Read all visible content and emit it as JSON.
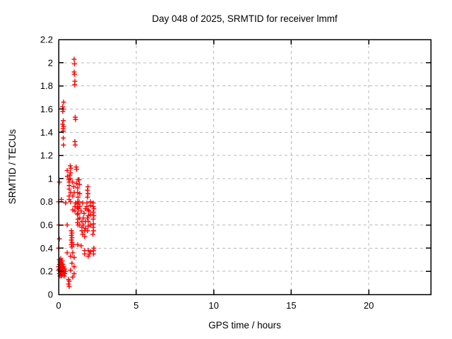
{
  "chart_data": {
    "type": "scatter",
    "title": "Day 048 of 2025, SRMTID for receiver lmmf",
    "xlabel": "GPS time / hours",
    "ylabel": "SRMTID / TECUs",
    "xlim": [
      0,
      24
    ],
    "ylim": [
      0,
      2.2
    ],
    "xticks": {
      "values": [
        0,
        5,
        10,
        15,
        20
      ],
      "labels": [
        "0",
        "5",
        "10",
        "15",
        "20"
      ]
    },
    "yticks": {
      "values": [
        0,
        0.2,
        0.4,
        0.6,
        0.8,
        1.0,
        1.2,
        1.4,
        1.6,
        1.8,
        2.0,
        2.2
      ],
      "labels": [
        "0",
        "0.2",
        "0.4",
        "0.6",
        "0.8",
        "1",
        "1.2",
        "1.4",
        "1.6",
        "1.8",
        "2",
        "2.2"
      ]
    },
    "grid": true,
    "legend": false,
    "marker": {
      "shape": "plus",
      "color": "#ff0000",
      "size": 7
    },
    "grid_color": "#b8b8b8",
    "axis_color": "#000000",
    "series": [
      {
        "name": "SRMTID",
        "points": [
          [
            1.0,
            2.03
          ],
          [
            1.02,
            1.99
          ],
          [
            1.0,
            1.92
          ],
          [
            1.02,
            1.9
          ],
          [
            1.05,
            1.84
          ],
          [
            1.03,
            1.81
          ],
          [
            0.32,
            1.66
          ],
          [
            0.26,
            1.62
          ],
          [
            0.3,
            1.6
          ],
          [
            0.27,
            1.58
          ],
          [
            0.3,
            1.5
          ],
          [
            0.26,
            1.47
          ],
          [
            0.31,
            1.45
          ],
          [
            0.28,
            1.43
          ],
          [
            0.3,
            1.41
          ],
          [
            0.3,
            1.35
          ],
          [
            0.31,
            1.29
          ],
          [
            1.07,
            1.53
          ],
          [
            1.09,
            1.51
          ],
          [
            1.05,
            1.32
          ],
          [
            1.07,
            1.29
          ],
          [
            0.75,
            1.11
          ],
          [
            0.79,
            1.09
          ],
          [
            1.13,
            1.1
          ],
          [
            0.55,
            1.07
          ],
          [
            0.76,
            1.05
          ],
          [
            0.73,
            1.03
          ],
          [
            0.57,
            1.02
          ],
          [
            0.75,
            1.0
          ],
          [
            0.66,
            0.99
          ],
          [
            1.16,
            1.08
          ],
          [
            0.05,
            0.97
          ],
          [
            0.68,
            0.97
          ],
          [
            0.89,
            0.97
          ],
          [
            1.14,
            0.96
          ],
          [
            1.32,
            0.99
          ],
          [
            1.34,
            0.95
          ],
          [
            1.25,
            0.99
          ],
          [
            0.68,
            0.94
          ],
          [
            0.98,
            0.93
          ],
          [
            1.23,
            0.92
          ],
          [
            0.68,
            0.91
          ],
          [
            1.89,
            0.93
          ],
          [
            0.77,
            0.88
          ],
          [
            1.0,
            0.88
          ],
          [
            1.23,
            0.88
          ],
          [
            1.36,
            0.87
          ],
          [
            0.68,
            0.85
          ],
          [
            0.91,
            0.85
          ],
          [
            1.25,
            0.84
          ],
          [
            1.86,
            0.9
          ],
          [
            1.89,
            0.87
          ],
          [
            1.86,
            0.84
          ],
          [
            0.18,
            0.82
          ],
          [
            0.68,
            0.82
          ],
          [
            1.22,
            0.8
          ],
          [
            0.45,
            0.79
          ],
          [
            0.77,
            0.8
          ],
          [
            1.09,
            0.79
          ],
          [
            1.32,
            0.8
          ],
          [
            1.55,
            0.79
          ],
          [
            1.82,
            0.79
          ],
          [
            2.05,
            0.8
          ],
          [
            2.23,
            0.79
          ],
          [
            0.0,
            0.8
          ],
          [
            1.25,
            0.78
          ],
          [
            1.05,
            0.76
          ],
          [
            1.36,
            0.76
          ],
          [
            1.82,
            0.76
          ],
          [
            2.05,
            0.77
          ],
          [
            2.23,
            0.76
          ],
          [
            1.22,
            0.75
          ],
          [
            0.91,
            0.73
          ],
          [
            1.27,
            0.74
          ],
          [
            1.73,
            0.74
          ],
          [
            2.27,
            0.74
          ],
          [
            1.91,
            0.73
          ],
          [
            1.05,
            0.72
          ],
          [
            1.45,
            0.72
          ],
          [
            1.95,
            0.72
          ],
          [
            2.23,
            0.71
          ],
          [
            1.25,
            0.7
          ],
          [
            1.64,
            0.7
          ],
          [
            2.05,
            0.69
          ],
          [
            1.22,
            0.69
          ],
          [
            1.91,
            0.68
          ],
          [
            2.27,
            0.68
          ],
          [
            1.36,
            0.66
          ],
          [
            1.59,
            0.66
          ],
          [
            1.86,
            0.66
          ],
          [
            1.25,
            0.65
          ],
          [
            2.23,
            0.65
          ],
          [
            1.5,
            0.63
          ],
          [
            1.73,
            0.63
          ],
          [
            1.91,
            0.63
          ],
          [
            1.22,
            0.62
          ],
          [
            0.55,
            0.6
          ],
          [
            1.36,
            0.6
          ],
          [
            1.59,
            0.6
          ],
          [
            2.05,
            0.6
          ],
          [
            2.25,
            0.61
          ],
          [
            0.02,
            0.6
          ],
          [
            1.25,
            0.6
          ],
          [
            1.91,
            0.59
          ],
          [
            1.5,
            0.58
          ],
          [
            1.73,
            0.57
          ],
          [
            2.23,
            0.58
          ],
          [
            1.86,
            0.55
          ],
          [
            1.5,
            0.55
          ],
          [
            1.68,
            0.55
          ],
          [
            2.25,
            0.55
          ],
          [
            0.82,
            0.55
          ],
          [
            0.86,
            0.53
          ],
          [
            1.55,
            0.52
          ],
          [
            2.21,
            0.52
          ],
          [
            0.82,
            0.51
          ],
          [
            1.68,
            0.5
          ],
          [
            0.86,
            0.49
          ],
          [
            0.05,
            0.48
          ],
          [
            0.82,
            0.47
          ],
          [
            0.86,
            0.45
          ],
          [
            0.82,
            0.43
          ],
          [
            0.95,
            0.43
          ],
          [
            1.23,
            0.43
          ],
          [
            1.45,
            0.42
          ],
          [
            0.86,
            0.41
          ],
          [
            0.0,
            0.4
          ],
          [
            2.27,
            0.4
          ],
          [
            1.68,
            0.38
          ],
          [
            2.25,
            0.38
          ],
          [
            0.55,
            0.36
          ],
          [
            0.91,
            0.36
          ],
          [
            1.91,
            0.38
          ],
          [
            2.05,
            0.37
          ],
          [
            1.68,
            0.35
          ],
          [
            2.25,
            0.35
          ],
          [
            0.77,
            0.33
          ],
          [
            1.0,
            0.32
          ],
          [
            1.91,
            0.33
          ],
          [
            2.0,
            0.35
          ],
          [
            0.05,
            0.3
          ],
          [
            0.14,
            0.31
          ],
          [
            0.23,
            0.29
          ],
          [
            0.09,
            0.28
          ],
          [
            0.18,
            0.27
          ],
          [
            0.05,
            0.26
          ],
          [
            0.27,
            0.26
          ],
          [
            0.14,
            0.25
          ],
          [
            0.0,
            0.24
          ],
          [
            0.09,
            0.24
          ],
          [
            0.23,
            0.23
          ],
          [
            0.32,
            0.24
          ],
          [
            0.05,
            0.22
          ],
          [
            0.14,
            0.22
          ],
          [
            0.27,
            0.21
          ],
          [
            0.0,
            0.21
          ],
          [
            0.09,
            0.2
          ],
          [
            0.18,
            0.2
          ],
          [
            0.32,
            0.19
          ],
          [
            0.05,
            0.18
          ],
          [
            0.14,
            0.18
          ],
          [
            0.23,
            0.17
          ],
          [
            0.09,
            0.16
          ],
          [
            0.18,
            0.16
          ],
          [
            0.41,
            0.22
          ],
          [
            0.45,
            0.2
          ],
          [
            0.41,
            0.18
          ],
          [
            0.36,
            0.16
          ],
          [
            0.86,
            0.27
          ],
          [
            1.0,
            0.24
          ],
          [
            0.77,
            0.21
          ],
          [
            1.0,
            0.18
          ],
          [
            0.91,
            0.15
          ],
          [
            0.64,
            0.13
          ],
          [
            0.68,
            0.115
          ],
          [
            0.64,
            0.09
          ],
          [
            0.68,
            0.07
          ]
        ]
      }
    ]
  }
}
